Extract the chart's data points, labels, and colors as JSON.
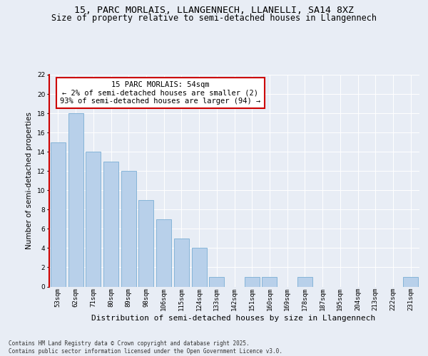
{
  "title_line1": "15, PARC MORLAIS, LLANGENNECH, LLANELLI, SA14 8XZ",
  "title_line2": "Size of property relative to semi-detached houses in Llangennech",
  "xlabel": "Distribution of semi-detached houses by size in Llangennech",
  "ylabel": "Number of semi-detached properties",
  "categories": [
    "53sqm",
    "62sqm",
    "71sqm",
    "80sqm",
    "89sqm",
    "98sqm",
    "106sqm",
    "115sqm",
    "124sqm",
    "133sqm",
    "142sqm",
    "151sqm",
    "160sqm",
    "169sqm",
    "178sqm",
    "187sqm",
    "195sqm",
    "204sqm",
    "213sqm",
    "222sqm",
    "231sqm"
  ],
  "values": [
    15,
    18,
    14,
    13,
    12,
    9,
    7,
    5,
    4,
    1,
    0,
    1,
    1,
    0,
    1,
    0,
    0,
    0,
    0,
    0,
    1
  ],
  "bar_color": "#b8d0ea",
  "bar_edge_color": "#7aaed4",
  "annotation_text": "15 PARC MORLAIS: 54sqm\n← 2% of semi-detached houses are smaller (2)\n93% of semi-detached houses are larger (94) →",
  "annotation_box_color": "#ffffff",
  "annotation_box_edge_color": "#cc0000",
  "ylim": [
    0,
    22
  ],
  "yticks": [
    0,
    2,
    4,
    6,
    8,
    10,
    12,
    14,
    16,
    18,
    20,
    22
  ],
  "bg_color": "#e8edf5",
  "plot_bg_color": "#e8edf5",
  "footer_text": "Contains HM Land Registry data © Crown copyright and database right 2025.\nContains public sector information licensed under the Open Government Licence v3.0.",
  "title_fontsize": 9.5,
  "subtitle_fontsize": 8.5,
  "ylabel_fontsize": 7.5,
  "xlabel_fontsize": 8,
  "tick_fontsize": 6.5,
  "annotation_fontsize": 7.5,
  "footer_fontsize": 5.5
}
